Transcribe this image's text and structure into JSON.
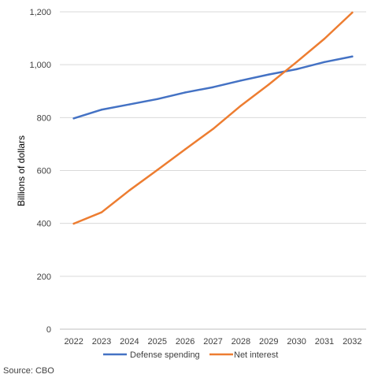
{
  "chart_data": {
    "type": "line",
    "ylabel": "Billions of dollars",
    "ylim": [
      0,
      1200
    ],
    "yticks": [
      0,
      200,
      400,
      600,
      800,
      1000,
      1200
    ],
    "ytick_labels": [
      "0",
      "200",
      "400",
      "600",
      "800",
      "1,000",
      "1,200"
    ],
    "categories": [
      "2022",
      "2023",
      "2024",
      "2025",
      "2026",
      "2027",
      "2028",
      "2029",
      "2030",
      "2031",
      "2032"
    ],
    "series": [
      {
        "name": "Defense spending",
        "color": "#4472C4",
        "values": [
          797,
          830,
          850,
          870,
          895,
          915,
          940,
          963,
          983,
          1010,
          1031
        ]
      },
      {
        "name": "Net interest",
        "color": "#ED7D31",
        "values": [
          399,
          442,
          525,
          602,
          680,
          757,
          845,
          925,
          1010,
          1098,
          1197
        ]
      }
    ],
    "grid": true,
    "legend_position": "bottom",
    "source": "Source: CBO"
  }
}
